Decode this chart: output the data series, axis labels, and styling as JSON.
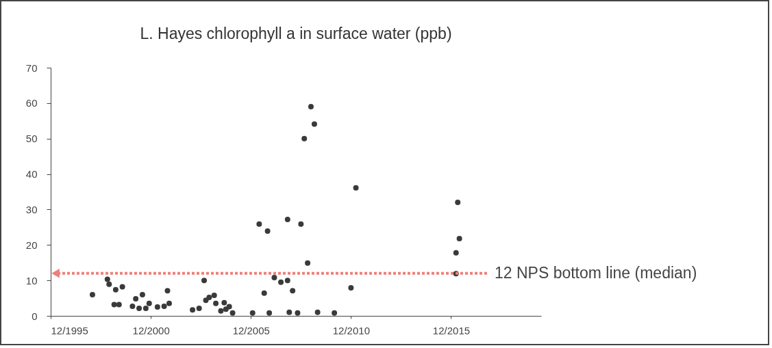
{
  "chart_data": {
    "type": "scatter",
    "title": "L. Hayes chlorophyll a in surface water (ppb)",
    "x": [
      "1998-01",
      "1998-10",
      "1998-11",
      "1999-02",
      "1999-03",
      "1999-05",
      "1999-07",
      "2000-01",
      "2000-03",
      "2000-05",
      "2000-07",
      "2000-09",
      "2000-11",
      "2001-04",
      "2001-08",
      "2001-10",
      "2001-11",
      "2003-01",
      "2003-05",
      "2003-08",
      "2003-09",
      "2003-11",
      "2004-02",
      "2004-03",
      "2004-06",
      "2004-08",
      "2004-09",
      "2004-11",
      "2005-01",
      "2006-01",
      "2006-05",
      "2006-08",
      "2006-10",
      "2006-11",
      "2007-02",
      "2007-06",
      "2007-10",
      "2007-10",
      "2007-11",
      "2008-01",
      "2008-04",
      "2008-06",
      "2008-08",
      "2008-10",
      "2008-12",
      "2009-02",
      "2009-04",
      "2010-02",
      "2010-12",
      "2011-03",
      "2016-03",
      "2016-03",
      "2016-04",
      "2016-05"
    ],
    "values": [
      6.0,
      10.3,
      8.9,
      3.2,
      7.4,
      3.2,
      8.2,
      2.7,
      4.8,
      2.1,
      6.0,
      2.1,
      3.5,
      2.5,
      2.7,
      7.1,
      3.5,
      1.7,
      2.1,
      10.0,
      4.4,
      5.2,
      5.8,
      3.5,
      1.4,
      3.7,
      1.9,
      2.6,
      0.8,
      0.8,
      25.9,
      6.4,
      23.9,
      0.8,
      10.8,
      9.5,
      27.2,
      10.0,
      1.0,
      7.1,
      0.8,
      25.9,
      50.0,
      14.9,
      59.0,
      54.1,
      1.0,
      0.8,
      7.9,
      36.1,
      11.9,
      17.8,
      32.0,
      21.8
    ],
    "color": "#3a3a3a",
    "marker": "circle",
    "xlim": [
      "1995-12",
      "2020-06"
    ],
    "xticks": [
      {
        "value": "1995-12",
        "label": "12/1995"
      },
      {
        "value": "2000-12",
        "label": "12/2000"
      },
      {
        "value": "2005-12",
        "label": "12/2005"
      },
      {
        "value": "2010-12",
        "label": "12/2010"
      },
      {
        "value": "2015-12",
        "label": "12/2015"
      }
    ],
    "ylim": [
      0,
      70
    ],
    "yticks": [
      0,
      10,
      20,
      30,
      40,
      50,
      60,
      70
    ],
    "ref_lines": [
      {
        "axis": "y",
        "value": 12,
        "label": "12 NPS bottom line (median)",
        "color": "#f07f7a",
        "line_style": "dotted"
      }
    ]
  }
}
